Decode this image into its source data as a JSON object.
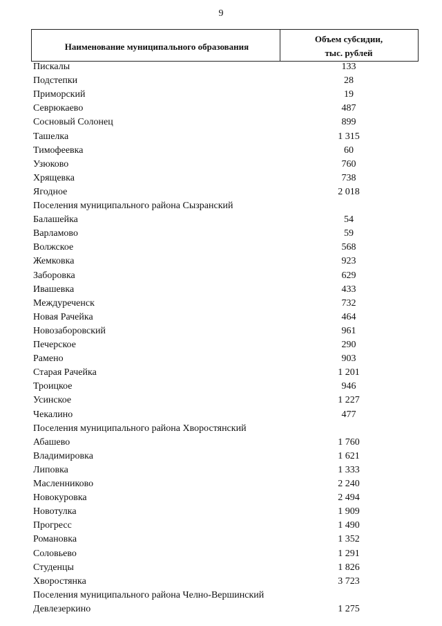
{
  "page_number": "9",
  "table": {
    "header": {
      "name": "Наименование муниципального образования",
      "value": [
        "Объем субсидии,",
        "тыс. рублей"
      ]
    },
    "rows": [
      {
        "name": "Пискалы",
        "value": "133"
      },
      {
        "name": "Подстепки",
        "value": "28"
      },
      {
        "name": "Приморский",
        "value": "19"
      },
      {
        "name": "Севрюкаево",
        "value": "487"
      },
      {
        "name": "Сосновый Солонец",
        "value": "899"
      },
      {
        "name": "Ташелка",
        "value": "1 315"
      },
      {
        "name": "Тимофеевка",
        "value": "60"
      },
      {
        "name": "Узюково",
        "value": "760"
      },
      {
        "name": "Хрящевка",
        "value": "738"
      },
      {
        "name": "Ягодное",
        "value": "2 018"
      },
      {
        "heading": "Поселения муниципального района Сызранский"
      },
      {
        "name": "Балашейка",
        "value": "54"
      },
      {
        "name": "Варламово",
        "value": "59"
      },
      {
        "name": "Волжское",
        "value": "568"
      },
      {
        "name": "Жемковка",
        "value": "923"
      },
      {
        "name": "Заборовка",
        "value": "629"
      },
      {
        "name": "Ивашевка",
        "value": "433"
      },
      {
        "name": "Междуреченск",
        "value": "732"
      },
      {
        "name": "Новая Рачейка",
        "value": "464"
      },
      {
        "name": "Новозаборовский",
        "value": "961"
      },
      {
        "name": "Печерское",
        "value": "290"
      },
      {
        "name": "Рамено",
        "value": "903"
      },
      {
        "name": "Старая Рачейка",
        "value": "1 201"
      },
      {
        "name": "Троицкое",
        "value": "946"
      },
      {
        "name": "Усинское",
        "value": "1 227"
      },
      {
        "name": "Чекалино",
        "value": "477"
      },
      {
        "heading": "Поселения муниципального района Хворостянский"
      },
      {
        "name": "Абашево",
        "value": "1 760"
      },
      {
        "name": "Владимировка",
        "value": "1 621"
      },
      {
        "name": "Липовка",
        "value": "1 333"
      },
      {
        "name": "Масленниково",
        "value": "2 240"
      },
      {
        "name": "Новокуровка",
        "value": "2 494"
      },
      {
        "name": "Новотулка",
        "value": "1 909"
      },
      {
        "name": "Прогресс",
        "value": "1 490"
      },
      {
        "name": "Романовка",
        "value": "1 352"
      },
      {
        "name": "Соловьево",
        "value": "1 291"
      },
      {
        "name": "Студенцы",
        "value": "1 826"
      },
      {
        "name": "Хворостянка",
        "value": "3 723"
      },
      {
        "heading": "Поселения муниципального района Челно-Вершинский"
      },
      {
        "name": "Девлезеркино",
        "value": "1 275"
      }
    ]
  }
}
